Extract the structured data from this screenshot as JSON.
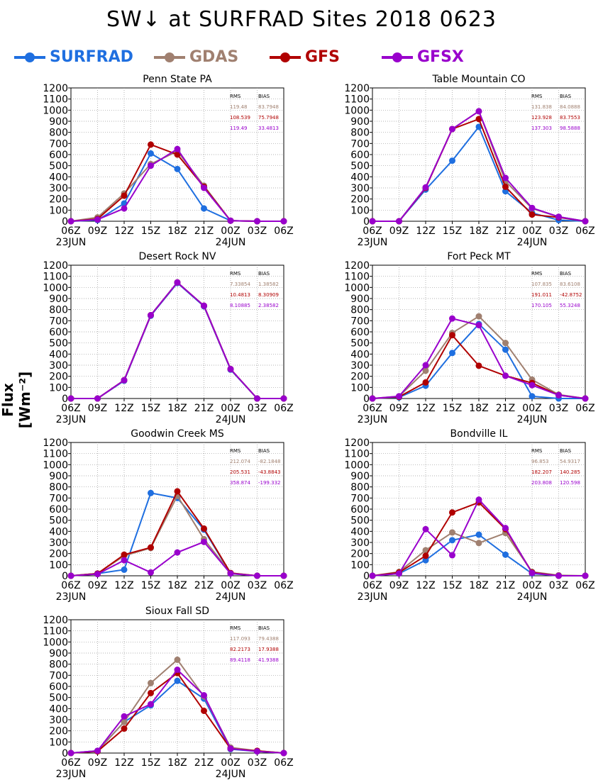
{
  "title": "SW↓ at SURFRAD Sites    2018 0623",
  "ylabel": "Flux [Wm⁻²]",
  "legend": [
    {
      "label": "SURFRAD",
      "color": "#1f6fe0"
    },
    {
      "label": "GDAS",
      "color": "#a08070"
    },
    {
      "label": "GFS",
      "color": "#b00000"
    },
    {
      "label": "GFSX",
      "color": "#9900cc"
    }
  ],
  "chart_data": [
    {
      "type": "line",
      "title": "Penn State PA",
      "xticks": [
        "06Z",
        "09Z",
        "12Z",
        "15Z",
        "18Z",
        "21Z",
        "00Z",
        "03Z",
        "06Z"
      ],
      "date_labels": [
        "23JUN",
        "24JUN"
      ],
      "ylim": [
        0,
        1200
      ],
      "yticks": [
        0,
        100,
        200,
        300,
        400,
        500,
        600,
        700,
        800,
        900,
        1000,
        1100,
        1200
      ],
      "stats": {
        "header": [
          "RMS",
          "BIAS"
        ],
        "rows": [
          [
            "119.48",
            "83.7948"
          ],
          [
            "108.539",
            "75.7948"
          ],
          [
            "119.49",
            "33.4813"
          ]
        ]
      },
      "series": [
        {
          "name": "SURFRAD",
          "values": [
            0,
            10,
            160,
            610,
            470,
            115,
            5,
            0,
            0
          ]
        },
        {
          "name": "GDAS",
          "values": [
            0,
            35,
            250,
            515,
            630,
            320,
            5,
            0,
            0
          ]
        },
        {
          "name": "GFS",
          "values": [
            0,
            20,
            230,
            690,
            600,
            310,
            5,
            0,
            0
          ]
        },
        {
          "name": "GFSX",
          "values": [
            0,
            15,
            115,
            500,
            650,
            300,
            5,
            0,
            0
          ]
        }
      ]
    },
    {
      "type": "line",
      "title": "Table Mountain CO",
      "xticks": [
        "06Z",
        "09Z",
        "12Z",
        "15Z",
        "18Z",
        "21Z",
        "00Z",
        "03Z",
        "06Z"
      ],
      "date_labels": [
        "23JUN",
        "24JUN"
      ],
      "ylim": [
        0,
        1200
      ],
      "yticks": [
        0,
        100,
        200,
        300,
        400,
        500,
        600,
        700,
        800,
        900,
        1000,
        1100,
        1200
      ],
      "stats": {
        "header": [
          "RMS",
          "BIAS"
        ],
        "rows": [
          [
            "131.838",
            "84.0888"
          ],
          [
            "123.928",
            "83.7553"
          ],
          [
            "137.303",
            "98.5888"
          ]
        ]
      },
      "series": [
        {
          "name": "SURFRAD",
          "values": [
            0,
            0,
            285,
            545,
            850,
            270,
            75,
            10,
            0
          ]
        },
        {
          "name": "GDAS",
          "values": [
            0,
            0,
            300,
            830,
            990,
            360,
            115,
            40,
            0
          ]
        },
        {
          "name": "GFS",
          "values": [
            0,
            0,
            300,
            830,
            920,
            310,
            60,
            35,
            0
          ]
        },
        {
          "name": "GFSX",
          "values": [
            0,
            0,
            305,
            830,
            990,
            390,
            120,
            40,
            0
          ]
        }
      ]
    },
    {
      "type": "line",
      "title": "Desert Rock NV",
      "xticks": [
        "06Z",
        "09Z",
        "12Z",
        "15Z",
        "18Z",
        "21Z",
        "00Z",
        "03Z",
        "06Z"
      ],
      "date_labels": [
        "23JUN",
        "24JUN"
      ],
      "ylim": [
        0,
        1200
      ],
      "yticks": [
        0,
        100,
        200,
        300,
        400,
        500,
        600,
        700,
        800,
        900,
        1000,
        1100,
        1200
      ],
      "stats": {
        "header": [
          "RMS",
          "BIAS"
        ],
        "rows": [
          [
            "7.33854",
            "1.38582"
          ],
          [
            "10.4813",
            "8.30909"
          ],
          [
            "8.10885",
            "2.38582"
          ]
        ]
      },
      "series": [
        {
          "name": "SURFRAD",
          "values": [
            0,
            0,
            160,
            745,
            1040,
            830,
            260,
            0,
            0
          ]
        },
        {
          "name": "GDAS",
          "values": [
            0,
            0,
            165,
            750,
            1045,
            835,
            265,
            0,
            0
          ]
        },
        {
          "name": "GFS",
          "values": [
            0,
            0,
            165,
            750,
            1045,
            835,
            265,
            0,
            0
          ]
        },
        {
          "name": "GFSX",
          "values": [
            0,
            0,
            165,
            750,
            1045,
            835,
            265,
            0,
            0
          ]
        }
      ]
    },
    {
      "type": "line",
      "title": "Fort Peck MT",
      "xticks": [
        "06Z",
        "09Z",
        "12Z",
        "15Z",
        "18Z",
        "21Z",
        "00Z",
        "03Z",
        "06Z"
      ],
      "date_labels": [
        "23JUN",
        "24JUN"
      ],
      "ylim": [
        0,
        1200
      ],
      "yticks": [
        0,
        100,
        200,
        300,
        400,
        500,
        600,
        700,
        800,
        900,
        1000,
        1100,
        1200
      ],
      "stats": {
        "header": [
          "RMS",
          "BIAS"
        ],
        "rows": [
          [
            "107.835",
            "83.6108"
          ],
          [
            "191.011",
            "-42.8752"
          ],
          [
            "170.105",
            "55.3248"
          ]
        ]
      },
      "series": [
        {
          "name": "SURFRAD",
          "values": [
            0,
            10,
            115,
            410,
            670,
            440,
            20,
            0,
            0
          ]
        },
        {
          "name": "GDAS",
          "values": [
            0,
            20,
            250,
            590,
            740,
            500,
            170,
            35,
            0
          ]
        },
        {
          "name": "GFS",
          "values": [
            0,
            15,
            145,
            570,
            295,
            205,
            140,
            30,
            0
          ]
        },
        {
          "name": "GFSX",
          "values": [
            0,
            20,
            300,
            720,
            660,
            205,
            120,
            30,
            0
          ]
        }
      ]
    },
    {
      "type": "line",
      "title": "Goodwin Creek MS",
      "xticks": [
        "06Z",
        "09Z",
        "12Z",
        "15Z",
        "18Z",
        "21Z",
        "00Z",
        "03Z",
        "06Z"
      ],
      "date_labels": [
        "23JUN",
        "24JUN"
      ],
      "ylim": [
        0,
        1200
      ],
      "yticks": [
        0,
        100,
        200,
        300,
        400,
        500,
        600,
        700,
        800,
        900,
        1000,
        1100,
        1200
      ],
      "stats": {
        "header": [
          "RMS",
          "BIAS"
        ],
        "rows": [
          [
            "212.074",
            "-82.1848"
          ],
          [
            "205.531",
            "-43.8843"
          ],
          [
            "358.874",
            "-199.332"
          ]
        ]
      },
      "series": [
        {
          "name": "SURFRAD",
          "values": [
            0,
            20,
            55,
            745,
            700,
            415,
            20,
            0,
            0
          ]
        },
        {
          "name": "GDAS",
          "values": [
            0,
            20,
            180,
            250,
            720,
            330,
            25,
            0,
            0
          ]
        },
        {
          "name": "GFS",
          "values": [
            0,
            20,
            190,
            255,
            760,
            425,
            25,
            0,
            0
          ]
        },
        {
          "name": "GFSX",
          "values": [
            0,
            15,
            140,
            30,
            210,
            305,
            20,
            0,
            0
          ]
        }
      ]
    },
    {
      "type": "line",
      "title": "Bondville IL",
      "xticks": [
        "06Z",
        "09Z",
        "12Z",
        "15Z",
        "18Z",
        "21Z",
        "00Z",
        "03Z",
        "06Z"
      ],
      "date_labels": [
        "23JUN",
        "24JUN"
      ],
      "ylim": [
        0,
        1200
      ],
      "yticks": [
        0,
        100,
        200,
        300,
        400,
        500,
        600,
        700,
        800,
        900,
        1000,
        1100,
        1200
      ],
      "stats": {
        "header": [
          "RMS",
          "BIAS"
        ],
        "rows": [
          [
            "96.853",
            "54.9317"
          ],
          [
            "182.207",
            "140.285"
          ],
          [
            "203.808",
            "120.598"
          ]
        ]
      },
      "series": [
        {
          "name": "SURFRAD",
          "values": [
            0,
            20,
            140,
            320,
            370,
            190,
            20,
            0,
            0
          ]
        },
        {
          "name": "GDAS",
          "values": [
            0,
            35,
            230,
            390,
            295,
            385,
            35,
            5,
            0
          ]
        },
        {
          "name": "GFS",
          "values": [
            0,
            30,
            180,
            570,
            660,
            420,
            30,
            0,
            0
          ]
        },
        {
          "name": "GFSX",
          "values": [
            0,
            20,
            420,
            185,
            685,
            430,
            25,
            0,
            0
          ]
        }
      ]
    },
    {
      "type": "line",
      "title": "Sioux Fall SD",
      "xticks": [
        "06Z",
        "09Z",
        "12Z",
        "15Z",
        "18Z",
        "21Z",
        "00Z",
        "03Z",
        "06Z"
      ],
      "date_labels": [
        "23JUN",
        "24JUN"
      ],
      "ylim": [
        0,
        1200
      ],
      "yticks": [
        0,
        100,
        200,
        300,
        400,
        500,
        600,
        700,
        800,
        900,
        1000,
        1100,
        1200
      ],
      "stats": {
        "header": [
          "RMS",
          "BIAS"
        ],
        "rows": [
          [
            "117.093",
            "79.4388"
          ],
          [
            "82.2173",
            "17.9388"
          ],
          [
            "89.4118",
            "41.9388"
          ]
        ]
      },
      "series": [
        {
          "name": "SURFRAD",
          "values": [
            0,
            20,
            280,
            430,
            650,
            490,
            35,
            15,
            0
          ]
        },
        {
          "name": "GDAS",
          "values": [
            0,
            20,
            280,
            630,
            840,
            510,
            50,
            20,
            0
          ]
        },
        {
          "name": "GFS",
          "values": [
            0,
            15,
            220,
            540,
            720,
            380,
            40,
            20,
            0
          ]
        },
        {
          "name": "GFSX",
          "values": [
            0,
            20,
            330,
            440,
            750,
            520,
            40,
            15,
            0
          ]
        }
      ]
    }
  ]
}
